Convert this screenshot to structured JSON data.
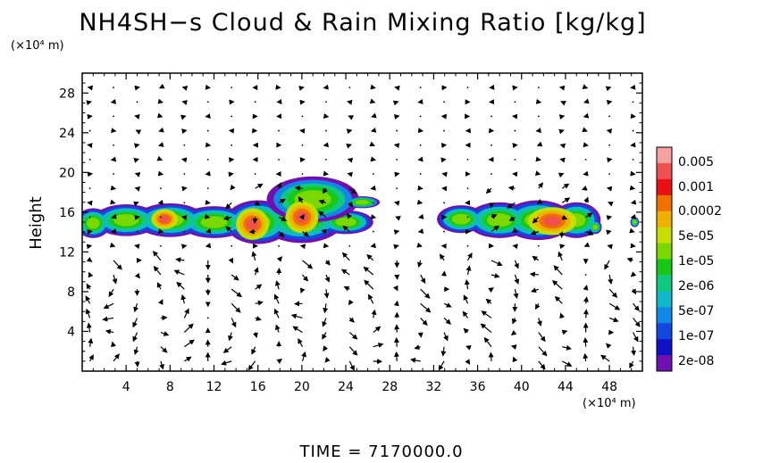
{
  "chart_data": {
    "type": "heatmap",
    "title": "NH4SH−s Cloud & Rain Mixing Ratio [kg/kg]",
    "ylabel": "Height",
    "y_unit": "(×10⁴ m)",
    "x_unit": "(×10⁴ m)",
    "footer": "TIME = 7170000.0",
    "xlim": [
      0,
      51
    ],
    "ylim": [
      0,
      30
    ],
    "x_ticks": [
      "4",
      "8",
      "12",
      "16",
      "20",
      "24",
      "28",
      "32",
      "36",
      "40",
      "44",
      "48"
    ],
    "y_ticks": [
      "4",
      "8",
      "12",
      "16",
      "20",
      "24",
      "28"
    ],
    "x_tick_values": [
      4,
      8,
      12,
      16,
      20,
      24,
      28,
      32,
      36,
      40,
      44,
      48
    ],
    "y_tick_values": [
      4,
      8,
      12,
      16,
      20,
      24,
      28
    ],
    "colorbar": {
      "labels": [
        "0.005",
        "0.001",
        "0.0002",
        "5e-05",
        "1e-05",
        "2e-06",
        "5e-07",
        "1e-07",
        "2e-08"
      ],
      "colors": [
        "#f7a0a0",
        "#f05050",
        "#e81010",
        "#f07000",
        "#f0b000",
        "#c8dc00",
        "#78d800",
        "#18c818",
        "#10c880",
        "#10b8c8",
        "#1088e8",
        "#1048e0",
        "#1010c8",
        "#7010b0"
      ]
    },
    "cloud_regions": [
      {
        "name": "left-cloud",
        "x_range": [
          0.5,
          26
        ],
        "y_range": [
          13.3,
          17.5
        ],
        "peak": "0.001"
      },
      {
        "name": "central-cloud-top",
        "x_range": [
          17,
          27
        ],
        "y_range": [
          15.5,
          19.5
        ],
        "peak": "1e-05"
      },
      {
        "name": "right-cloud",
        "x_range": [
          33,
          47
        ],
        "y_range": [
          12.8,
          17.5
        ],
        "peak": "0.001"
      }
    ],
    "wind_vectors": "velocity arrow field"
  }
}
